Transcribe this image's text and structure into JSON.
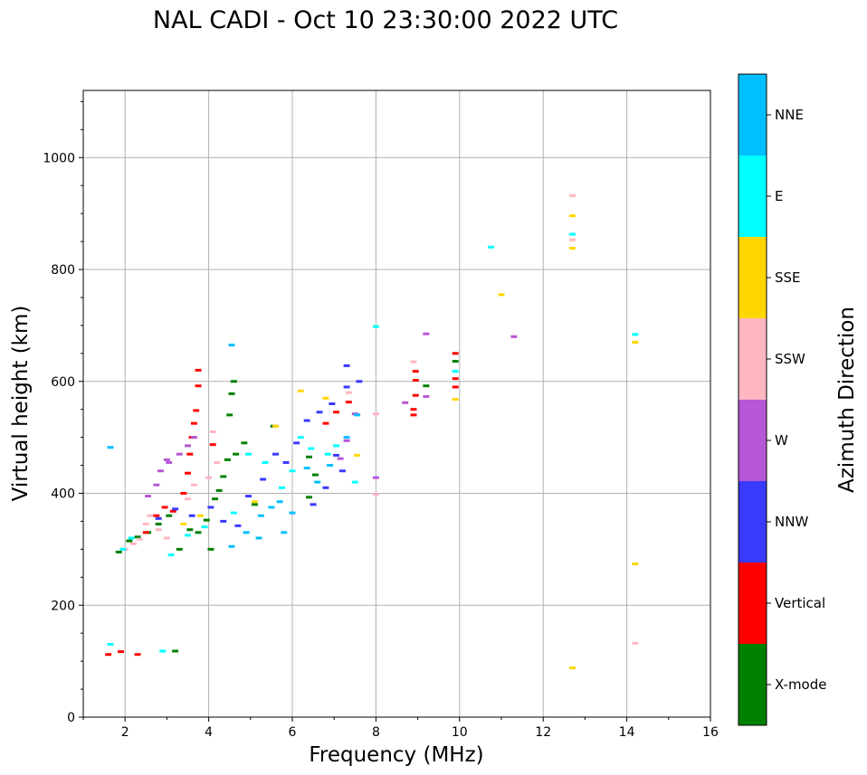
{
  "chart_data": {
    "type": "scatter",
    "title": "NAL CADI - Oct 10 23:30:00 2022 UTC",
    "xlabel": "Frequency (MHz)",
    "ylabel": "Virtual height (km)",
    "xlim": [
      1,
      16
    ],
    "ylim": [
      0,
      1120
    ],
    "xticks": [
      2,
      4,
      6,
      8,
      10,
      12,
      14,
      16
    ],
    "yticks": [
      0,
      200,
      400,
      600,
      800,
      1000
    ],
    "grid": true,
    "colorbar": {
      "label": "Azimuth Direction",
      "categories": [
        {
          "name": "X-mode",
          "color": "#008000"
        },
        {
          "name": "Vertical",
          "color": "#ff0000"
        },
        {
          "name": "NNW",
          "color": "#3a3aff"
        },
        {
          "name": "W",
          "color": "#b657d6"
        },
        {
          "name": "SSW",
          "color": "#ffb6c1"
        },
        {
          "name": "SSE",
          "color": "#ffd700"
        },
        {
          "name": "E",
          "color": "#00ffff"
        },
        {
          "name": "NNE",
          "color": "#00bfff"
        }
      ]
    },
    "point_width_mhz": 0.15,
    "series": [
      {
        "name": "X-mode",
        "points": [
          [
            1.85,
            295
          ],
          [
            2.1,
            315
          ],
          [
            2.3,
            322
          ],
          [
            2.55,
            330
          ],
          [
            2.8,
            345
          ],
          [
            3.05,
            360
          ],
          [
            3.2,
            118
          ],
          [
            3.3,
            300
          ],
          [
            3.55,
            335
          ],
          [
            3.75,
            330
          ],
          [
            3.95,
            352
          ],
          [
            4.05,
            300
          ],
          [
            4.15,
            390
          ],
          [
            4.25,
            405
          ],
          [
            4.35,
            430
          ],
          [
            4.45,
            460
          ],
          [
            4.5,
            540
          ],
          [
            4.55,
            578
          ],
          [
            4.6,
            600
          ],
          [
            4.65,
            470
          ],
          [
            4.85,
            490
          ],
          [
            5.1,
            380
          ],
          [
            5.55,
            520
          ],
          [
            6.4,
            465
          ],
          [
            6.55,
            433
          ],
          [
            6.4,
            393
          ],
          [
            9.2,
            592
          ],
          [
            9.9,
            636
          ]
        ]
      },
      {
        "name": "Vertical",
        "points": [
          [
            1.6,
            112
          ],
          [
            1.9,
            117
          ],
          [
            2.3,
            112
          ],
          [
            2.5,
            330
          ],
          [
            2.75,
            360
          ],
          [
            2.95,
            375
          ],
          [
            3.15,
            368
          ],
          [
            3.4,
            400
          ],
          [
            3.5,
            436
          ],
          [
            3.55,
            470
          ],
          [
            3.6,
            500
          ],
          [
            3.65,
            525
          ],
          [
            3.7,
            548
          ],
          [
            3.75,
            592
          ],
          [
            3.75,
            620
          ],
          [
            4.1,
            487
          ],
          [
            6.8,
            525
          ],
          [
            7.05,
            545
          ],
          [
            7.35,
            563
          ],
          [
            8.9,
            540
          ],
          [
            8.9,
            550
          ],
          [
            8.95,
            575
          ],
          [
            8.95,
            602
          ],
          [
            8.95,
            618
          ],
          [
            9.9,
            590
          ],
          [
            9.9,
            605
          ],
          [
            9.9,
            650
          ]
        ]
      },
      {
        "name": "NNW",
        "points": [
          [
            2.8,
            355
          ],
          [
            3.2,
            372
          ],
          [
            3.6,
            360
          ],
          [
            4.05,
            375
          ],
          [
            4.35,
            350
          ],
          [
            4.7,
            342
          ],
          [
            4.95,
            395
          ],
          [
            5.3,
            425
          ],
          [
            5.6,
            470
          ],
          [
            5.85,
            455
          ],
          [
            6.1,
            490
          ],
          [
            6.35,
            530
          ],
          [
            6.65,
            545
          ],
          [
            6.95,
            560
          ],
          [
            7.3,
            590
          ],
          [
            7.3,
            628
          ],
          [
            7.6,
            600
          ],
          [
            6.5,
            380
          ],
          [
            6.8,
            410
          ],
          [
            7.05,
            468
          ],
          [
            7.2,
            440
          ]
        ]
      },
      {
        "name": "W",
        "points": [
          [
            2.85,
            440
          ],
          [
            3.05,
            455
          ],
          [
            3.3,
            470
          ],
          [
            3.5,
            485
          ],
          [
            3.65,
            500
          ],
          [
            2.55,
            395
          ],
          [
            2.75,
            415
          ],
          [
            3.0,
            460
          ],
          [
            7.15,
            462
          ],
          [
            7.3,
            494
          ],
          [
            7.5,
            542
          ],
          [
            8.0,
            428
          ],
          [
            8.7,
            562
          ],
          [
            9.2,
            685
          ],
          [
            9.2,
            573
          ],
          [
            11.3,
            680
          ]
        ]
      },
      {
        "name": "SSW",
        "points": [
          [
            2.0,
            300
          ],
          [
            2.2,
            310
          ],
          [
            2.35,
            318
          ],
          [
            2.5,
            345
          ],
          [
            2.6,
            360
          ],
          [
            2.8,
            335
          ],
          [
            3.0,
            320
          ],
          [
            3.5,
            390
          ],
          [
            3.65,
            415
          ],
          [
            4.0,
            428
          ],
          [
            4.2,
            455
          ],
          [
            4.1,
            510
          ],
          [
            7.35,
            580
          ],
          [
            8.0,
            398
          ],
          [
            8.0,
            542
          ],
          [
            8.9,
            635
          ],
          [
            12.7,
            932
          ],
          [
            12.7,
            853
          ],
          [
            14.2,
            132
          ]
        ]
      },
      {
        "name": "SSE",
        "points": [
          [
            3.4,
            345
          ],
          [
            3.8,
            360
          ],
          [
            5.1,
            385
          ],
          [
            5.6,
            520
          ],
          [
            6.2,
            583
          ],
          [
            6.8,
            570
          ],
          [
            7.55,
            468
          ],
          [
            9.9,
            568
          ],
          [
            11.0,
            755
          ],
          [
            12.7,
            838
          ],
          [
            12.7,
            896
          ],
          [
            12.7,
            88
          ],
          [
            14.2,
            670
          ],
          [
            14.2,
            274
          ]
        ]
      },
      {
        "name": "E",
        "points": [
          [
            1.65,
            130
          ],
          [
            1.95,
            300
          ],
          [
            2.15,
            320
          ],
          [
            2.9,
            118
          ],
          [
            3.1,
            290
          ],
          [
            3.5,
            325
          ],
          [
            3.9,
            340
          ],
          [
            4.6,
            365
          ],
          [
            4.95,
            470
          ],
          [
            5.35,
            455
          ],
          [
            5.75,
            410
          ],
          [
            6.0,
            440
          ],
          [
            6.2,
            500
          ],
          [
            6.45,
            480
          ],
          [
            6.85,
            470
          ],
          [
            7.05,
            485
          ],
          [
            7.5,
            420
          ],
          [
            8.0,
            698
          ],
          [
            9.9,
            618
          ],
          [
            10.75,
            840
          ],
          [
            12.7,
            863
          ],
          [
            14.2,
            684
          ]
        ]
      },
      {
        "name": "NNE",
        "points": [
          [
            4.55,
            305
          ],
          [
            4.9,
            330
          ],
          [
            5.25,
            360
          ],
          [
            5.5,
            375
          ],
          [
            5.7,
            385
          ],
          [
            6.0,
            365
          ],
          [
            6.35,
            445
          ],
          [
            6.6,
            420
          ],
          [
            6.9,
            450
          ],
          [
            7.3,
            500
          ],
          [
            7.55,
            540
          ],
          [
            5.8,
            330
          ],
          [
            5.2,
            320
          ],
          [
            4.55,
            665
          ],
          [
            1.65,
            482
          ]
        ]
      }
    ]
  }
}
